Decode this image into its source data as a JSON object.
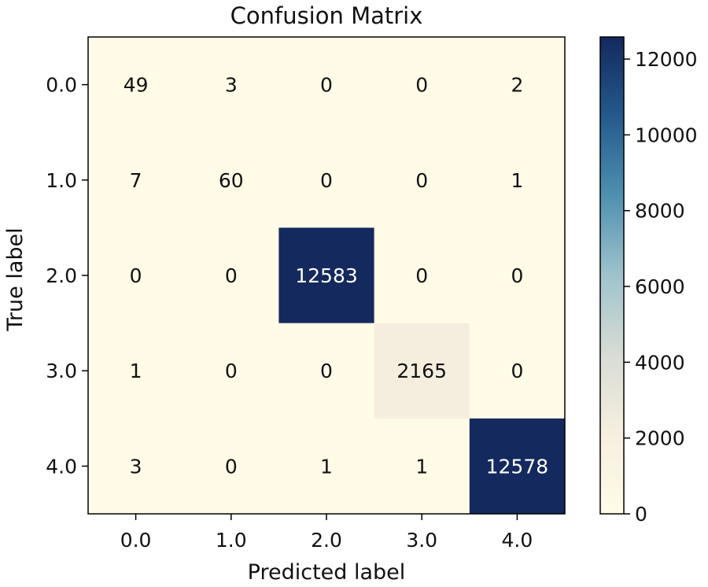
{
  "chart_data": {
    "type": "heatmap",
    "title": "Confusion Matrix",
    "xlabel": "Predicted label",
    "ylabel": "True label",
    "x_tick_labels": [
      "0.0",
      "1.0",
      "2.0",
      "3.0",
      "4.0"
    ],
    "y_tick_labels": [
      "0.0",
      "1.0",
      "2.0",
      "3.0",
      "4.0"
    ],
    "matrix": [
      [
        49,
        3,
        0,
        0,
        2
      ],
      [
        7,
        60,
        0,
        0,
        1
      ],
      [
        0,
        0,
        12583,
        0,
        0
      ],
      [
        1,
        0,
        0,
        2165,
        0
      ],
      [
        3,
        0,
        1,
        1,
        12578
      ]
    ],
    "colorbar": {
      "min": 0,
      "max": 12583,
      "ticks": [
        0,
        2000,
        4000,
        6000,
        8000,
        10000,
        12000
      ],
      "tick_labels": [
        "0",
        "2000",
        "4000",
        "6000",
        "8000",
        "10000",
        "12000"
      ],
      "colormap": [
        "#fffbe6",
        "#f6efdf",
        "#d8dcd5",
        "#9fc3cc",
        "#4f90b0",
        "#245a8c",
        "#14295e"
      ]
    }
  }
}
